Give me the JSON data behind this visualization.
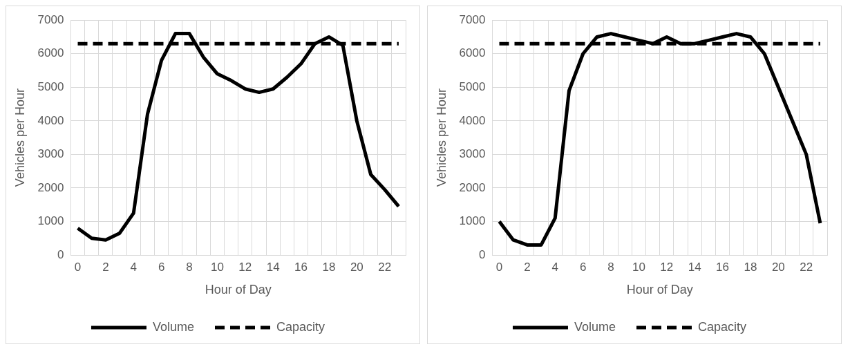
{
  "chart_data": [
    {
      "type": "line",
      "xlabel": "Hour of Day",
      "ylabel": "Vehicles per Hour",
      "categories": [
        "0",
        null,
        "2",
        null,
        "4",
        null,
        "6",
        null,
        "8",
        null,
        "10",
        null,
        "12",
        null,
        "14",
        null,
        "16",
        null,
        "18",
        null,
        "20",
        null,
        "22",
        null
      ],
      "series": [
        {
          "name": "Volume",
          "color": "#000000",
          "line_style": "solid",
          "values": [
            800,
            500,
            450,
            650,
            1250,
            4200,
            5800,
            6600,
            6600,
            5900,
            5400,
            5200,
            4950,
            4850,
            4950,
            5300,
            5700,
            6300,
            6500,
            6250,
            4000,
            2400,
            1950,
            1450
          ]
        },
        {
          "name": "Capacity",
          "color": "#000000",
          "line_style": "dashed",
          "values": [
            6300,
            6300,
            6300,
            6300,
            6300,
            6300,
            6300,
            6300,
            6300,
            6300,
            6300,
            6300,
            6300,
            6300,
            6300,
            6300,
            6300,
            6300,
            6300,
            6300,
            6300,
            6300,
            6300,
            6300
          ]
        }
      ],
      "ylim": [
        0,
        7000
      ],
      "yticks": [
        0,
        1000,
        2000,
        3000,
        4000,
        5000,
        6000,
        7000
      ],
      "grid": true,
      "legend": "bottom",
      "marker": "none"
    },
    {
      "type": "line",
      "xlabel": "Hour of Day",
      "ylabel": "Vehicles per Hour",
      "categories": [
        "0",
        null,
        "2",
        null,
        "4",
        null,
        "6",
        null,
        "8",
        null,
        "10",
        null,
        "12",
        null,
        "14",
        null,
        "16",
        null,
        "18",
        null,
        "20",
        null,
        "22",
        null
      ],
      "series": [
        {
          "name": "Volume",
          "color": "#000000",
          "line_style": "solid",
          "values": [
            1000,
            450,
            300,
            300,
            1100,
            4900,
            6000,
            6500,
            6600,
            6500,
            6400,
            6300,
            6500,
            6300,
            6300,
            6400,
            6500,
            6600,
            6500,
            6000,
            5000,
            4000,
            3000,
            950
          ]
        },
        {
          "name": "Capacity",
          "color": "#000000",
          "line_style": "dashed",
          "values": [
            6300,
            6300,
            6300,
            6300,
            6300,
            6300,
            6300,
            6300,
            6300,
            6300,
            6300,
            6300,
            6300,
            6300,
            6300,
            6300,
            6300,
            6300,
            6300,
            6300,
            6300,
            6300,
            6300,
            6300
          ]
        }
      ],
      "ylim": [
        0,
        7000
      ],
      "yticks": [
        0,
        1000,
        2000,
        3000,
        4000,
        5000,
        6000,
        7000
      ],
      "grid": true,
      "legend": "bottom",
      "marker": "none"
    }
  ]
}
